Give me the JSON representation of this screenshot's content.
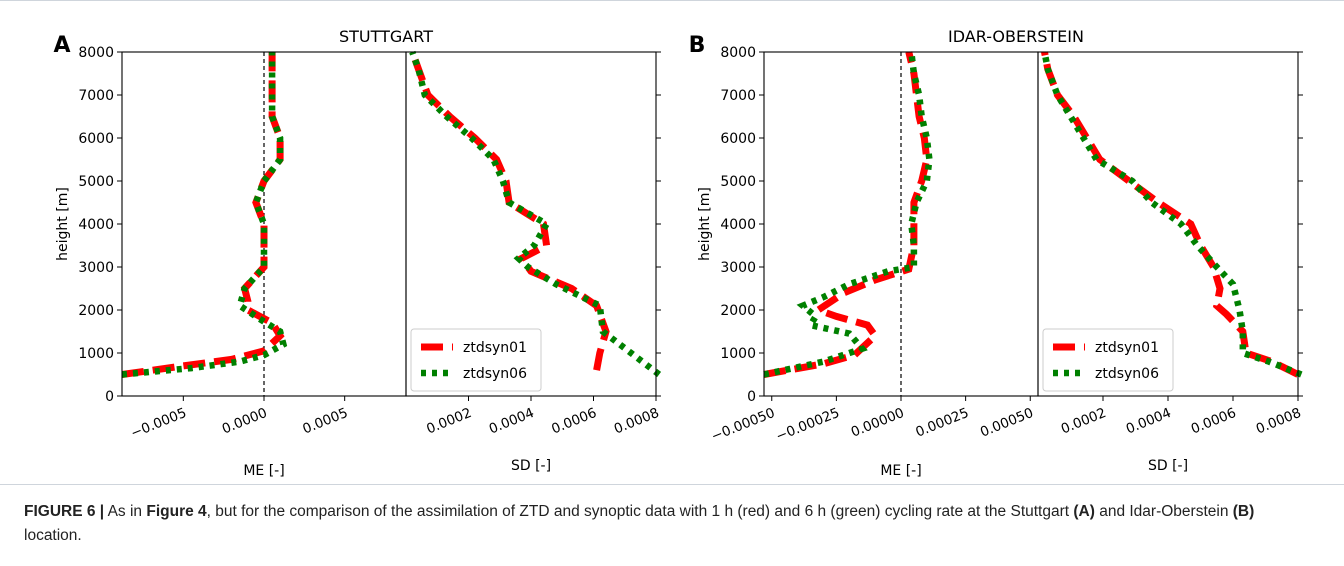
{
  "caption": {
    "fig_label": "FIGURE 6 |",
    "t1": " As in ",
    "ref": "Figure 4",
    "t2": ", but for the comparison of the assimilation of ZTD and synoptic data with 1 h (red) and 6 h (green) cycling rate at the Stuttgart ",
    "a_label": "(A)",
    "t3": " and Idar-Oberstein ",
    "b_label": "(B)",
    "t4": " location."
  },
  "colors": {
    "ztdsyn01": "#ff0000",
    "ztdsyn06": "#008000"
  },
  "chart_data": [
    {
      "type": "line",
      "panel_label": "A",
      "title": "STUTTGART",
      "ylabel": "height [m]",
      "ylim": [
        0,
        8000
      ],
      "yticks": [
        0,
        1000,
        2000,
        3000,
        4000,
        5000,
        6000,
        7000,
        8000
      ],
      "me": {
        "xlabel": "ME [-]",
        "xlim": [
          -0.00088,
          0.00088
        ],
        "xticks": [
          -0.0005,
          0.0,
          0.0005
        ],
        "xtick_labels": [
          "−0.0005",
          "0.0000",
          "0.0005"
        ],
        "zero_line": 0
      },
      "sd": {
        "xlabel": "SD [-]",
        "xlim": [
          0.0,
          0.0008
        ],
        "xticks": [
          0.0002,
          0.0004,
          0.0006,
          0.0008
        ],
        "xtick_labels": [
          "0.0002",
          "0.0004",
          "0.0006",
          "0.0008"
        ]
      },
      "legend": {
        "position": "lower-right",
        "entries": [
          "ztdsyn01",
          "ztdsyn06"
        ]
      },
      "series": [
        {
          "name": "ztdsyn01",
          "style": "dashed",
          "me": [
            [
              -0.00088,
              500
            ],
            [
              -0.0005,
              700
            ],
            [
              -0.0002,
              850
            ],
            [
              0.0,
              1050
            ],
            [
              0.0001,
              1400
            ],
            [
              5e-05,
              1700
            ],
            [
              -0.0001,
              2000
            ],
            [
              -0.0001,
              2200
            ],
            [
              -0.00012,
              2500
            ],
            [
              0.0,
              3000
            ],
            [
              0.0,
              3500
            ],
            [
              0.0,
              4000
            ],
            [
              -5e-05,
              4500
            ],
            [
              0.0,
              5000
            ],
            [
              0.0001,
              5500
            ],
            [
              0.0001,
              6000
            ],
            [
              5e-05,
              6500
            ],
            [
              5e-05,
              7000
            ],
            [
              5e-05,
              7500
            ],
            [
              5e-05,
              8000
            ]
          ],
          "sd": [
            [
              0.00061,
              600
            ],
            [
              0.00062,
              1000
            ],
            [
              0.00064,
              1500
            ],
            [
              0.00061,
              2100
            ],
            [
              0.00053,
              2500
            ],
            [
              0.0004,
              2900
            ],
            [
              0.00037,
              3200
            ],
            [
              0.00045,
              3500
            ],
            [
              0.00044,
              4000
            ],
            [
              0.00033,
              4500
            ],
            [
              0.00032,
              5000
            ],
            [
              0.00029,
              5500
            ],
            [
              0.00022,
              6000
            ],
            [
              0.00014,
              6500
            ],
            [
              7e-05,
              7000
            ],
            [
              4e-05,
              7600
            ],
            [
              2e-05,
              8000
            ]
          ]
        },
        {
          "name": "ztdsyn06",
          "style": "dotted",
          "me": [
            [
              -0.00088,
              500
            ],
            [
              -0.00045,
              650
            ],
            [
              -0.00015,
              800
            ],
            [
              0.0,
              950
            ],
            [
              0.00012,
              1200
            ],
            [
              0.0001,
              1500
            ],
            [
              -3e-05,
              1800
            ],
            [
              -0.00015,
              2100
            ],
            [
              -0.00012,
              2500
            ],
            [
              0.0,
              3000
            ],
            [
              0.0,
              3500
            ],
            [
              0.0,
              4000
            ],
            [
              -5e-05,
              4500
            ],
            [
              0.0,
              5000
            ],
            [
              0.0001,
              5500
            ],
            [
              0.0001,
              6000
            ],
            [
              5e-05,
              6500
            ],
            [
              5e-05,
              7000
            ],
            [
              5e-05,
              7500
            ],
            [
              5e-05,
              8000
            ]
          ],
          "sd": [
            [
              0.00081,
              500
            ],
            [
              0.00072,
              1000
            ],
            [
              0.00063,
              1500
            ],
            [
              0.00062,
              2100
            ],
            [
              0.00048,
              2600
            ],
            [
              0.00039,
              3000
            ],
            [
              0.00036,
              3200
            ],
            [
              0.00041,
              3500
            ],
            [
              0.00045,
              4000
            ],
            [
              0.00033,
              4500
            ],
            [
              0.00031,
              5000
            ],
            [
              0.00028,
              5500
            ],
            [
              0.00021,
              6000
            ],
            [
              0.00013,
              6500
            ],
            [
              6e-05,
              7000
            ],
            [
              4e-05,
              7600
            ],
            [
              2e-05,
              8000
            ]
          ]
        }
      ]
    },
    {
      "type": "line",
      "panel_label": "B",
      "title": "IDAR-OBERSTEIN",
      "ylabel": "height [m]",
      "ylim": [
        0,
        8000
      ],
      "yticks": [
        0,
        1000,
        2000,
        3000,
        4000,
        5000,
        6000,
        7000,
        8000
      ],
      "me": {
        "xlabel": "ME [-]",
        "xlim": [
          -0.00053,
          0.00053
        ],
        "xticks": [
          -0.0005,
          -0.00025,
          0.0,
          0.00025,
          0.0005
        ],
        "xtick_labels": [
          "−0.00050",
          "−0.00025",
          "0.00000",
          "0.00025",
          "0.00050"
        ],
        "zero_line": 0
      },
      "sd": {
        "xlabel": "SD [-]",
        "xlim": [
          0.0,
          0.0008
        ],
        "xticks": [
          0.0002,
          0.0004,
          0.0006,
          0.0008
        ],
        "xtick_labels": [
          "0.0002",
          "0.0004",
          "0.0006",
          "0.0008"
        ]
      },
      "legend": {
        "position": "lower-right",
        "entries": [
          "ztdsyn01",
          "ztdsyn06"
        ]
      },
      "series": [
        {
          "name": "ztdsyn01",
          "style": "dashed",
          "me": [
            [
              -0.00053,
              500
            ],
            [
              -0.0003,
              750
            ],
            [
              -0.00018,
              950
            ],
            [
              -0.0001,
              1400
            ],
            [
              -0.00013,
              1650
            ],
            [
              -0.00025,
              1850
            ],
            [
              -0.00032,
              2000
            ],
            [
              -0.00022,
              2400
            ],
            [
              -0.0001,
              2700
            ],
            [
              3e-05,
              2950
            ],
            [
              5e-05,
              3500
            ],
            [
              5e-05,
              4000
            ],
            [
              5e-05,
              4500
            ],
            [
              8e-05,
              5000
            ],
            [
              0.0001,
              5500
            ],
            [
              9e-05,
              6000
            ],
            [
              7e-05,
              6500
            ],
            [
              6e-05,
              7000
            ],
            [
              5e-05,
              7500
            ],
            [
              3e-05,
              8000
            ]
          ],
          "sd": [
            [
              0.0008,
              500
            ],
            [
              0.00072,
              800
            ],
            [
              0.00064,
              1000
            ],
            [
              0.00063,
              1500
            ],
            [
              0.00058,
              1900
            ],
            [
              0.00055,
              2100
            ],
            [
              0.00056,
              2500
            ],
            [
              0.00054,
              3000
            ],
            [
              0.0005,
              3500
            ],
            [
              0.00047,
              4000
            ],
            [
              0.00037,
              4500
            ],
            [
              0.00028,
              5000
            ],
            [
              0.00019,
              5500
            ],
            [
              0.00015,
              6000
            ],
            [
              0.00011,
              6500
            ],
            [
              6e-05,
              7000
            ],
            [
              3e-05,
              7600
            ],
            [
              2e-05,
              8000
            ]
          ]
        },
        {
          "name": "ztdsyn06",
          "style": "dotted",
          "me": [
            [
              -0.00053,
              500
            ],
            [
              -0.0003,
              800
            ],
            [
              -0.00015,
              1100
            ],
            [
              -0.0002,
              1450
            ],
            [
              -0.00035,
              1650
            ],
            [
              -0.00033,
              1850
            ],
            [
              -0.00038,
              2100
            ],
            [
              -0.0003,
              2300
            ],
            [
              -0.0002,
              2600
            ],
            [
              -5e-05,
              2900
            ],
            [
              5e-05,
              3000
            ],
            [
              5e-05,
              3500
            ],
            [
              4e-05,
              4000
            ],
            [
              6e-05,
              4500
            ],
            [
              0.0001,
              5000
            ],
            [
              0.00011,
              5500
            ],
            [
              0.0001,
              6000
            ],
            [
              8e-05,
              6500
            ],
            [
              7e-05,
              7000
            ],
            [
              5e-05,
              7500
            ],
            [
              4e-05,
              8000
            ]
          ],
          "sd": [
            [
              0.00081,
              500
            ],
            [
              0.00071,
              800
            ],
            [
              0.00063,
              1000
            ],
            [
              0.00063,
              1500
            ],
            [
              0.00062,
              2000
            ],
            [
              0.0006,
              2600
            ],
            [
              0.00055,
              3000
            ],
            [
              0.00049,
              3500
            ],
            [
              0.00044,
              4000
            ],
            [
              0.00035,
              4500
            ],
            [
              0.00029,
              5000
            ],
            [
              0.00018,
              5500
            ],
            [
              0.00014,
              6000
            ],
            [
              0.0001,
              6500
            ],
            [
              6e-05,
              7000
            ],
            [
              3e-05,
              7600
            ],
            [
              2e-05,
              8000
            ]
          ]
        }
      ]
    }
  ]
}
